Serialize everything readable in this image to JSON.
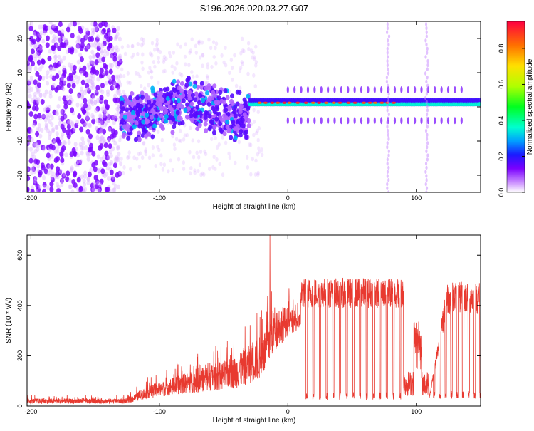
{
  "title": "S196.2026.020.03.27.G07",
  "chart_data": [
    {
      "type": "heatmap",
      "xlabel": "Height of straight line (km)",
      "ylabel": "Frequency (Hz)",
      "xlim": [
        -203,
        150
      ],
      "ylim": [
        -25,
        25
      ],
      "xticks": [
        -200,
        -100,
        0,
        100
      ],
      "xtick_labels": [
        "-200",
        "-100",
        "0",
        "100"
      ],
      "yticks": [
        -20,
        -10,
        0,
        10,
        20
      ],
      "ytick_labels": [
        "-20",
        "-10",
        "0",
        "10",
        "20"
      ],
      "colorbar": {
        "label": "Normalized spectral amplitude",
        "range": [
          0,
          0.95
        ],
        "ticks": [
          0,
          0.2,
          0.4,
          0.6,
          0.8
        ],
        "tick_labels": [
          "0.0",
          "0.2",
          "0.4",
          "0.6",
          "0.8"
        ]
      },
      "regions": [
        {
          "x_range": [
            -203,
            -130
          ],
          "freq_spread": 25,
          "amplitude": 0.12,
          "description": "scattered noise"
        },
        {
          "x_range": [
            -130,
            -30
          ],
          "freq_spread": 8,
          "amplitude": 0.2,
          "description": "wandering clusters"
        },
        {
          "x_range": [
            -30,
            150
          ],
          "freq_center": 0.8,
          "amplitude": 0.9,
          "description": "stable signal band"
        }
      ],
      "vertical_artifacts_x": [
        78,
        108
      ]
    },
    {
      "type": "line",
      "xlabel": "Height of straight line (km)",
      "ylabel": "SNR (10 * v/v)",
      "xlim": [
        -203,
        150
      ],
      "ylim": [
        0,
        680
      ],
      "xticks": [
        -200,
        -100,
        0,
        100
      ],
      "xtick_labels": [
        "-200",
        "-100",
        "0",
        "100"
      ],
      "yticks": [
        0,
        200,
        400,
        600
      ],
      "ytick_labels": [
        "0",
        "200",
        "400",
        "600"
      ],
      "series": [
        {
          "name": "SNR",
          "color": "#e83a30",
          "envelope": [
            {
              "x": -203,
              "base": 10,
              "spread": 25
            },
            {
              "x": -125,
              "base": 10,
              "spread": 25
            },
            {
              "x": -110,
              "base": 30,
              "spread": 60
            },
            {
              "x": -80,
              "base": 50,
              "spread": 100
            },
            {
              "x": -40,
              "base": 70,
              "spread": 160
            },
            {
              "x": -20,
              "base": 110,
              "spread": 220
            },
            {
              "x": -10,
              "base": 220,
              "spread": 230
            },
            {
              "x": 0,
              "base": 280,
              "spread": 140
            },
            {
              "x": 8,
              "base": 300,
              "spread": 90
            }
          ],
          "pulse_segment": {
            "x_range": [
              10,
              90
            ],
            "high": 450,
            "high_spread": 120,
            "low": 25,
            "period_km": 5.2
          },
          "gap_segment": {
            "x_range": [
              90,
              110
            ],
            "level": 100,
            "spread": 80
          },
          "late_segment": {
            "x_range": [
              110,
              150
            ],
            "high": 430,
            "high_spread": 130,
            "low": 30,
            "period_km": 4.5
          },
          "peak": {
            "x": -14,
            "y": 680
          }
        }
      ]
    }
  ]
}
